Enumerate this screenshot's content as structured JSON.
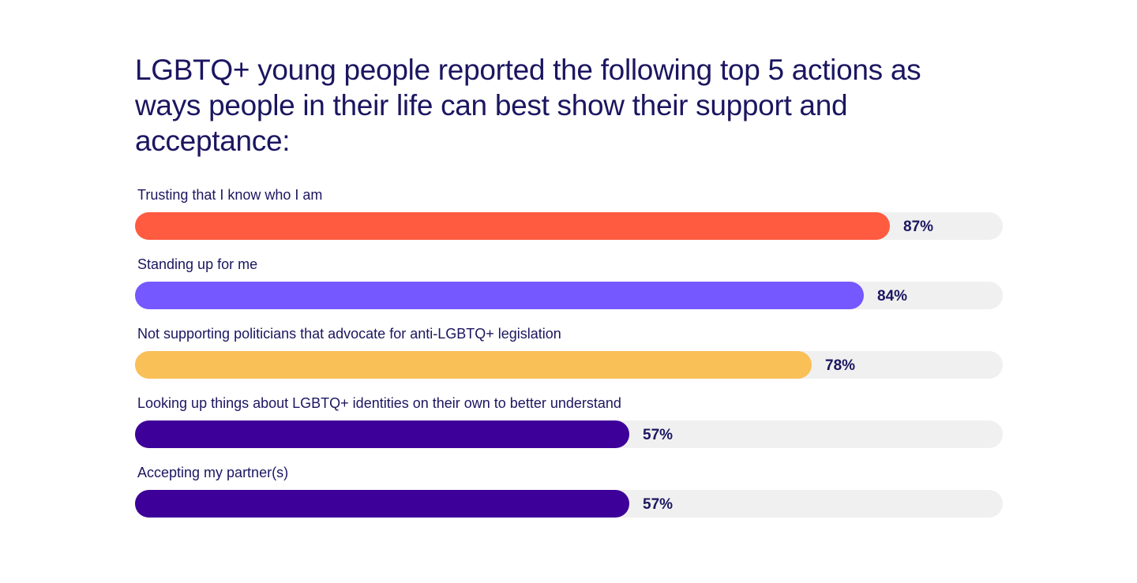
{
  "chart_data": {
    "type": "bar",
    "orientation": "horizontal",
    "title": "LGBTQ+ young people reported the following top 5 actions as ways people in their life can best show their support and acceptance:",
    "xlim": [
      0,
      100
    ],
    "grid": false,
    "categories": [
      "Trusting that I know who I am",
      "Standing up for me",
      "Not supporting politicians that advocate for anti-LGBTQ+ legislation",
      "Looking up things about LGBTQ+ identities on their own to better understand",
      "Accepting my partner(s)"
    ],
    "values": [
      87,
      84,
      78,
      57,
      57
    ],
    "value_labels": [
      "87%",
      "84%",
      "78%",
      "57%",
      "57%"
    ],
    "colors": [
      "#ff5b40",
      "#7558ff",
      "#f9c058",
      "#3d0099",
      "#3d0099"
    ],
    "track_color": "#f0f0f0",
    "text_color": "#1b1660"
  }
}
